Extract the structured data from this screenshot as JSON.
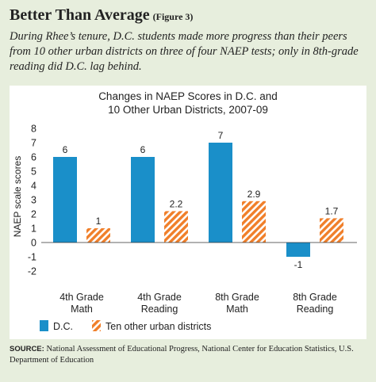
{
  "figure": {
    "title": "Better Than Average",
    "figure_number": "(Figure 3)",
    "caption": "During Rhee’s tenure, D.C. students made more progress than their peers from 10 other urban districts on three of four NAEP tests; only in 8th-grade reading did D.C. lag behind.",
    "source_label": "SOURCE:",
    "source_text": "National Assessment of Educational Progress, National Center for Education Statistics, U.S. Department of Education"
  },
  "colors": {
    "panel_background": "#e7eedd",
    "plot_background": "#ffffff",
    "dc_blue": "#1a8fc9",
    "other_orange": "#f07f2a"
  },
  "chart_data": {
    "type": "bar",
    "title_lines": [
      "Changes in NAEP Scores in D.C. and",
      "10 Other Urban Districts, 2007-09"
    ],
    "ylabel": "NAEP scale scores",
    "xlabel": "",
    "ylim": [
      -2,
      8
    ],
    "yticks": [
      -2,
      -1,
      0,
      1,
      2,
      3,
      4,
      5,
      6,
      7,
      8
    ],
    "grid": false,
    "legend_position": "bottom-left",
    "categories": [
      [
        "4th Grade",
        "Math"
      ],
      [
        "4th Grade",
        "Reading"
      ],
      [
        "8th Grade",
        "Math"
      ],
      [
        "8th Grade",
        "Reading"
      ]
    ],
    "series": [
      {
        "name": "D.C.",
        "values": [
          6,
          6,
          7,
          -1
        ],
        "labels": [
          "6",
          "6",
          "7",
          "-1"
        ],
        "pattern": "solid"
      },
      {
        "name": "Ten other urban districts",
        "values": [
          1,
          2.2,
          2.9,
          1.7
        ],
        "labels": [
          "1",
          "2.2",
          "2.9",
          "1.7"
        ],
        "pattern": "hatched"
      }
    ]
  }
}
